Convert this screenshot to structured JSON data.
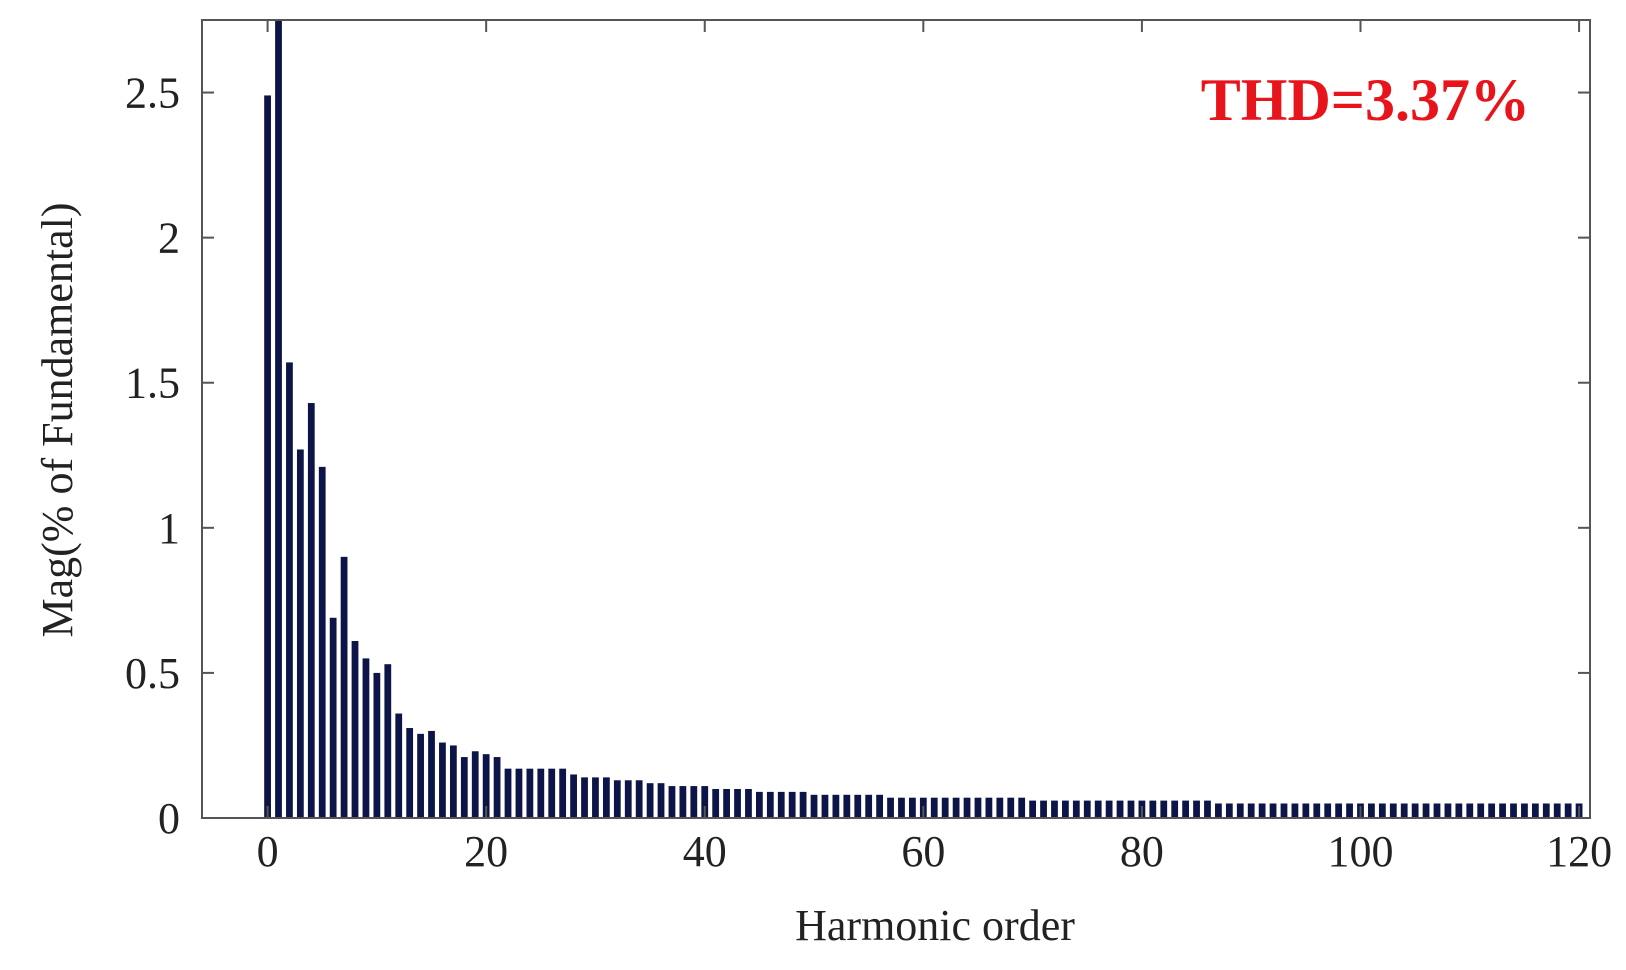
{
  "chart_data": {
    "type": "bar",
    "title": "",
    "xlabel": "Harmonic order",
    "ylabel": "Mag(% of Fundamental)",
    "xlim": [
      -6,
      121
    ],
    "ylim": [
      0,
      2.75
    ],
    "xticks": [
      0,
      20,
      40,
      60,
      80,
      100,
      120
    ],
    "yticks": [
      0,
      0.5,
      1,
      1.5,
      2,
      2.5
    ],
    "xtick_labels": [
      "0",
      "20",
      "40",
      "60",
      "80",
      "100",
      "120"
    ],
    "ytick_labels": [
      "0",
      "0.5",
      "1",
      "1.5",
      "2",
      "2.5"
    ],
    "grid": false,
    "bar_color": "#0d1448",
    "annotation": {
      "text": "THD=3.37%",
      "color": "#e8141c",
      "placement": "top-right"
    },
    "series": [
      {
        "values": [
          2.49,
          2.75,
          1.57,
          1.27,
          1.43,
          1.21,
          0.69,
          0.9,
          0.61,
          0.55,
          0.5,
          0.53,
          0.36,
          0.31,
          0.29,
          0.3,
          0.26,
          0.25,
          0.21,
          0.23,
          0.22,
          0.21,
          0.17,
          0.17,
          0.17,
          0.17,
          0.17,
          0.17,
          0.15,
          0.14,
          0.14,
          0.14,
          0.13,
          0.13,
          0.13,
          0.12,
          0.12,
          0.11,
          0.11,
          0.11,
          0.11,
          0.1,
          0.1,
          0.1,
          0.1,
          0.09,
          0.09,
          0.09,
          0.09,
          0.09,
          0.08,
          0.08,
          0.08,
          0.08,
          0.08,
          0.08,
          0.08,
          0.07,
          0.07,
          0.07,
          0.07,
          0.07,
          0.07,
          0.07,
          0.07,
          0.07,
          0.07,
          0.07,
          0.07,
          0.07,
          0.06,
          0.06,
          0.06,
          0.06,
          0.06,
          0.06,
          0.06,
          0.06,
          0.06,
          0.06,
          0.06,
          0.06,
          0.06,
          0.06,
          0.06,
          0.06,
          0.06,
          0.05,
          0.05,
          0.05,
          0.05,
          0.05,
          0.05,
          0.05,
          0.05,
          0.05,
          0.05,
          0.05,
          0.05,
          0.05,
          0.05,
          0.05,
          0.05,
          0.05,
          0.05,
          0.05,
          0.05,
          0.05,
          0.05,
          0.05,
          0.05,
          0.05,
          0.05,
          0.05,
          0.05,
          0.05,
          0.05,
          0.05,
          0.05,
          0.05,
          0.05
        ]
      }
    ]
  }
}
